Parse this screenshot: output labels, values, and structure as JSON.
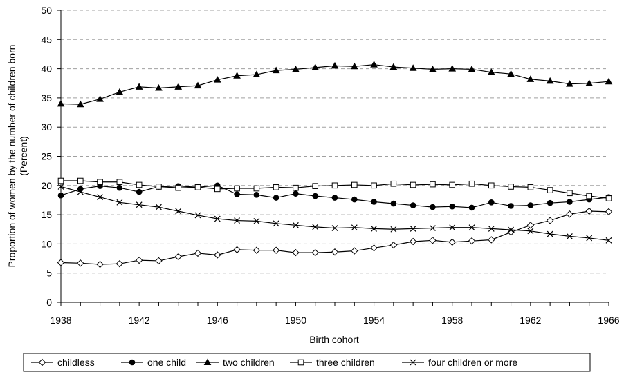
{
  "chart_data": {
    "type": "line",
    "xlabel": "Birth cohort",
    "ylabel": "Proportion of women by the number of children born (Percent)",
    "ylabel_lines": [
      "Proportion of women by the number of children born",
      "(Percent)"
    ],
    "xlim": [
      1938,
      1966
    ],
    "ylim": [
      0,
      50
    ],
    "x_ticks": [
      1938,
      1942,
      1946,
      1950,
      1954,
      1958,
      1962,
      1966
    ],
    "y_ticks": [
      0,
      5,
      10,
      15,
      20,
      25,
      30,
      35,
      40,
      45,
      50
    ],
    "grid": "horizontal dashed",
    "legend_position": "bottom",
    "x": [
      1938,
      1939,
      1940,
      1941,
      1942,
      1943,
      1944,
      1945,
      1946,
      1947,
      1948,
      1949,
      1950,
      1951,
      1952,
      1953,
      1954,
      1955,
      1956,
      1957,
      1958,
      1959,
      1960,
      1961,
      1962,
      1963,
      1964,
      1965,
      1966
    ],
    "series": [
      {
        "name": "childless",
        "marker": "diamond-open",
        "values": [
          6.8,
          6.7,
          6.5,
          6.6,
          7.2,
          7.1,
          7.8,
          8.4,
          8.1,
          9.0,
          8.9,
          8.9,
          8.5,
          8.5,
          8.6,
          8.8,
          9.3,
          9.8,
          10.4,
          10.6,
          10.3,
          10.5,
          10.7,
          12.0,
          13.2,
          14.0,
          15.1,
          15.6,
          15.5
        ]
      },
      {
        "name": "one child",
        "marker": "circle-filled",
        "values": [
          18.3,
          19.4,
          19.9,
          19.6,
          18.9,
          19.8,
          19.9,
          19.7,
          20.0,
          18.5,
          18.4,
          17.9,
          18.6,
          18.2,
          17.9,
          17.6,
          17.2,
          16.9,
          16.6,
          16.3,
          16.4,
          16.2,
          17.1,
          16.5,
          16.6,
          17.0,
          17.2,
          17.6,
          18.0
        ]
      },
      {
        "name": "two children",
        "marker": "triangle-filled",
        "values": [
          34.0,
          33.9,
          34.8,
          36.0,
          36.9,
          36.7,
          36.9,
          37.1,
          38.1,
          38.8,
          39.0,
          39.7,
          39.9,
          40.2,
          40.5,
          40.4,
          40.7,
          40.3,
          40.1,
          39.9,
          40.0,
          39.9,
          39.4,
          39.1,
          38.2,
          37.9,
          37.4,
          37.5,
          37.8
        ]
      },
      {
        "name": "three children",
        "marker": "square-open",
        "values": [
          20.8,
          20.8,
          20.6,
          20.6,
          20.1,
          19.8,
          19.6,
          19.7,
          19.4,
          19.5,
          19.5,
          19.7,
          19.6,
          19.9,
          20.0,
          20.1,
          20.0,
          20.3,
          20.1,
          20.2,
          20.1,
          20.3,
          20.0,
          19.8,
          19.7,
          19.2,
          18.7,
          18.2,
          17.8
        ]
      },
      {
        "name": "four children or more",
        "marker": "x",
        "values": [
          19.8,
          18.9,
          18.0,
          17.1,
          16.7,
          16.3,
          15.6,
          14.9,
          14.3,
          14.0,
          13.9,
          13.5,
          13.2,
          12.9,
          12.7,
          12.8,
          12.6,
          12.5,
          12.6,
          12.7,
          12.8,
          12.8,
          12.6,
          12.4,
          12.2,
          11.7,
          11.3,
          11.0,
          10.6
        ]
      }
    ]
  }
}
